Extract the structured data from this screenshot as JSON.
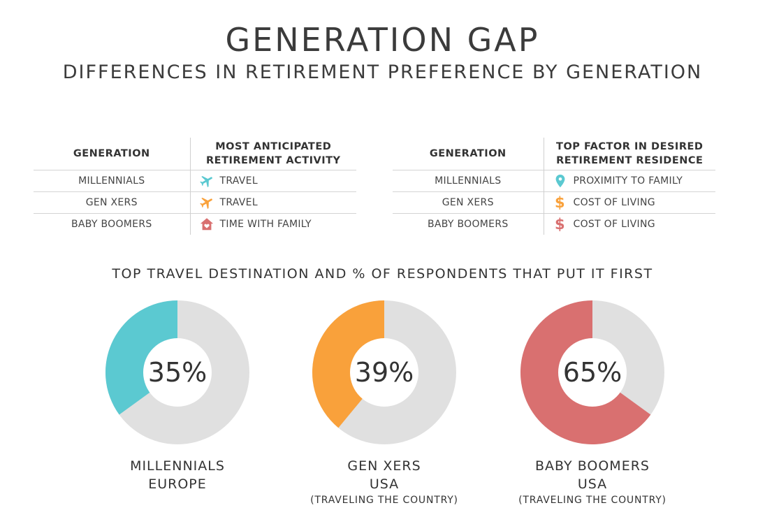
{
  "header": {
    "title": "GENERATION GAP",
    "subtitle": "DIFFERENCES IN RETIREMENT PREFERENCE BY GENERATION"
  },
  "activity_table": {
    "col_generation": "GENERATION",
    "col_activity_line1": "MOST ANTICIPATED",
    "col_activity_line2": "RETIREMENT ACTIVITY",
    "rows": [
      {
        "generation": "MILLENNIALS",
        "activity": "TRAVEL",
        "icon": "airplane-icon",
        "color": "#5bc9d1"
      },
      {
        "generation": "GEN XERS",
        "activity": "TRAVEL",
        "icon": "airplane-icon",
        "color": "#f9a13b"
      },
      {
        "generation": "BABY BOOMERS",
        "activity": "TIME WITH FAMILY",
        "icon": "home-heart-icon",
        "color": "#d97070"
      }
    ]
  },
  "residence_table": {
    "col_generation": "GENERATION",
    "col_factor_line1": "TOP FACTOR IN DESIRED",
    "col_factor_line2": "RETIREMENT RESIDENCE",
    "rows": [
      {
        "generation": "MILLENNIALS",
        "factor": "PROXIMITY TO FAMILY",
        "icon": "location-pin-icon",
        "symbol": "",
        "color": "#5bc9d1"
      },
      {
        "generation": "GEN XERS",
        "factor": "COST OF LIVING",
        "icon": "dollar-icon",
        "symbol": "$",
        "color": "#f9a13b"
      },
      {
        "generation": "BABY BOOMERS",
        "factor": "COST OF LIVING",
        "icon": "dollar-icon",
        "symbol": "$",
        "color": "#d97070"
      }
    ]
  },
  "chart_data": {
    "type": "pie",
    "title": "TOP TRAVEL DESTINATION AND % OF RESPONDENTS THAT PUT IT FIRST",
    "remainder_color": "#e0e0e0",
    "donuts": [
      {
        "generation": "MILLENNIALS",
        "destination": "EUROPE",
        "note": "",
        "value": 35,
        "label": "35%",
        "color": "#5bc9d1"
      },
      {
        "generation": "GEN XERS",
        "destination": "USA",
        "note": "(TRAVELING THE COUNTRY)",
        "value": 39,
        "label": "39%",
        "color": "#f9a13b"
      },
      {
        "generation": "BABY BOOMERS",
        "destination": "USA",
        "note": "(TRAVELING THE COUNTRY)",
        "value": 65,
        "label": "65%",
        "color": "#d97070"
      }
    ]
  }
}
